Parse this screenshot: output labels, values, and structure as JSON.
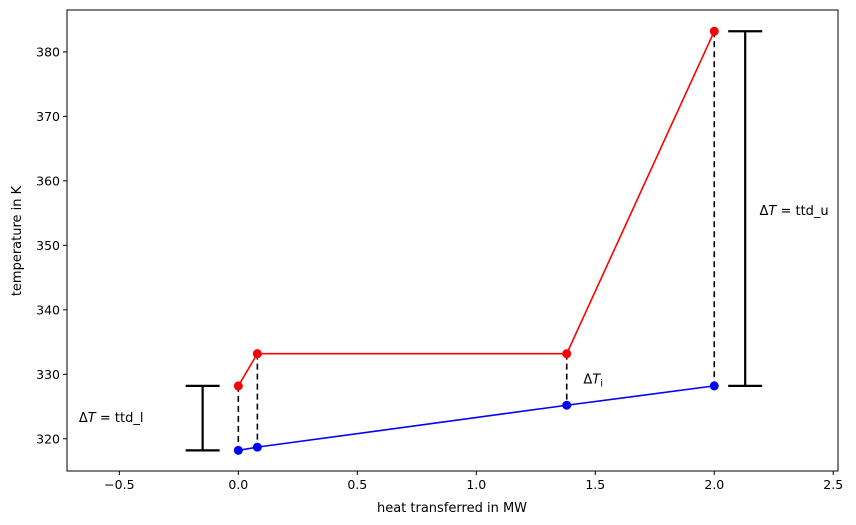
{
  "chart_data": {
    "type": "line",
    "xlabel": "heat transferred in MW",
    "ylabel": "temperature in K",
    "xlim": [
      -0.72,
      2.52
    ],
    "ylim": [
      315.0,
      386.5
    ],
    "xticks": [
      -0.5,
      0.0,
      0.5,
      1.0,
      1.5,
      2.0,
      2.5
    ],
    "xtick_labels": [
      "−0.5",
      "0.0",
      "0.5",
      "1.0",
      "1.5",
      "2.0",
      "2.5"
    ],
    "yticks": [
      320,
      330,
      340,
      350,
      360,
      370,
      380
    ],
    "ytick_labels": [
      "320",
      "330",
      "340",
      "350",
      "360",
      "370",
      "380"
    ],
    "grid": false,
    "series": [
      {
        "color": "#ff0000",
        "x": [
          0.0,
          0.08,
          1.38,
          2.0
        ],
        "y": [
          328.2,
          333.2,
          333.2,
          383.2
        ]
      },
      {
        "color": "#0000ff",
        "x": [
          0.0,
          0.08,
          1.38,
          2.0
        ],
        "y": [
          318.2,
          318.7,
          325.2,
          328.2
        ]
      }
    ],
    "annotations": {
      "ttd_lower": {
        "label_prefix": "ΔT",
        "label_suffix": " = ttd_l",
        "x": -0.15,
        "y_low": 318.2,
        "y_high": 328.2,
        "label_x": -0.67,
        "label_y": 322.6
      },
      "ttd_upper": {
        "label_prefix": "ΔT",
        "label_suffix": " = ttd_u",
        "x": 2.13,
        "y_low": 328.2,
        "y_high": 383.2,
        "label_x": 2.19,
        "label_y": 354.7
      },
      "delta_i": {
        "label_prefix": "ΔT",
        "label_sub": "i",
        "label_x": 1.45,
        "label_y": 328.6
      }
    }
  }
}
